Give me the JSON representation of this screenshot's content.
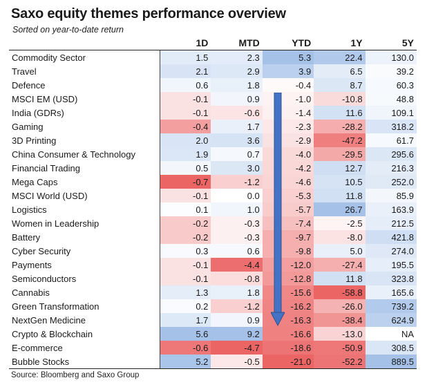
{
  "title": "Saxo equity themes performance overview",
  "subtitle": "Sorted on year-to-date return",
  "source": "Source: Bloomberg and Saxo Group",
  "columns": [
    "",
    "1D",
    "MTD",
    "YTD",
    "1Y",
    "5Y"
  ],
  "colors": {
    "positive": "#5b8fd6",
    "negative": "#e84a4a",
    "arrow": "#4472c4"
  },
  "rows": [
    {
      "name": "Commodity Sector",
      "d1": "1.5",
      "mtd": "2.3",
      "ytd": "5.3",
      "y1": "22.4",
      "y5": "130.0"
    },
    {
      "name": "Travel",
      "d1": "2.1",
      "mtd": "2.9",
      "ytd": "3.9",
      "y1": "6.5",
      "y5": "39.2"
    },
    {
      "name": "Defence",
      "d1": "0.6",
      "mtd": "1.8",
      "ytd": "-0.4",
      "y1": "8.7",
      "y5": "60.3"
    },
    {
      "name": "MSCI EM (USD)",
      "d1": "-0.1",
      "mtd": "0.9",
      "ytd": "-1.0",
      "y1": "-10.8",
      "y5": "48.8"
    },
    {
      "name": "India (GDRs)",
      "d1": "-0.1",
      "mtd": "-0.6",
      "ytd": "-1.4",
      "y1": "11.6",
      "y5": "109.1"
    },
    {
      "name": "Gaming",
      "d1": "-0.4",
      "mtd": "1.7",
      "ytd": "-2.3",
      "y1": "-28.2",
      "y5": "318.2"
    },
    {
      "name": "3D Printing",
      "d1": "2.0",
      "mtd": "3.6",
      "ytd": "-2.9",
      "y1": "-47.2",
      "y5": "61.7"
    },
    {
      "name": "China Consumer & Technology",
      "d1": "1.9",
      "mtd": "0.7",
      "ytd": "-4.0",
      "y1": "-29.5",
      "y5": "295.6"
    },
    {
      "name": "Financial Trading",
      "d1": "0.5",
      "mtd": "3.0",
      "ytd": "-4.2",
      "y1": "12.7",
      "y5": "216.3"
    },
    {
      "name": "Mega Caps",
      "d1": "-0.7",
      "mtd": "-1.2",
      "ytd": "-4.6",
      "y1": "10.5",
      "y5": "252.0"
    },
    {
      "name": "MSCI World (USD)",
      "d1": "-0.1",
      "mtd": "0.0",
      "ytd": "-5.3",
      "y1": "11.8",
      "y5": "85.9"
    },
    {
      "name": "Logistics",
      "d1": "0.1",
      "mtd": "1.0",
      "ytd": "-5.7",
      "y1": "26.7",
      "y5": "163.9"
    },
    {
      "name": "Women in Leadership",
      "d1": "-0.2",
      "mtd": "-0.3",
      "ytd": "-7.4",
      "y1": "-2.5",
      "y5": "212.5"
    },
    {
      "name": "Battery",
      "d1": "-0.2",
      "mtd": "-0.3",
      "ytd": "-9.7",
      "y1": "-8.0",
      "y5": "421.8"
    },
    {
      "name": "Cyber Security",
      "d1": "0.3",
      "mtd": "0.6",
      "ytd": "-9.8",
      "y1": "5.0",
      "y5": "274.0"
    },
    {
      "name": "Payments",
      "d1": "-0.1",
      "mtd": "-4.4",
      "ytd": "-12.0",
      "y1": "-27.4",
      "y5": "195.5"
    },
    {
      "name": "Semiconductors",
      "d1": "-0.1",
      "mtd": "-0.8",
      "ytd": "-12.8",
      "y1": "11.8",
      "y5": "323.8"
    },
    {
      "name": "Cannabis",
      "d1": "1.3",
      "mtd": "1.8",
      "ytd": "-15.6",
      "y1": "-58.8",
      "y5": "165.6"
    },
    {
      "name": "Green Transformation",
      "d1": "0.2",
      "mtd": "-1.2",
      "ytd": "-16.2",
      "y1": "-26.0",
      "y5": "739.2"
    },
    {
      "name": "NextGen Medicine",
      "d1": "1.7",
      "mtd": "0.9",
      "ytd": "-16.3",
      "y1": "-38.4",
      "y5": "624.9"
    },
    {
      "name": "Crypto & Blockchain",
      "d1": "5.6",
      "mtd": "9.2",
      "ytd": "-16.6",
      "y1": "-13.0",
      "y5": "NA"
    },
    {
      "name": "E-commerce",
      "d1": "-0.6",
      "mtd": "-4.7",
      "ytd": "-18.6",
      "y1": "-50.9",
      "y5": "308.5"
    },
    {
      "name": "Bubble Stocks",
      "d1": "5.2",
      "mtd": "-0.5",
      "ytd": "-21.0",
      "y1": "-52.2",
      "y5": "889.5"
    }
  ]
}
